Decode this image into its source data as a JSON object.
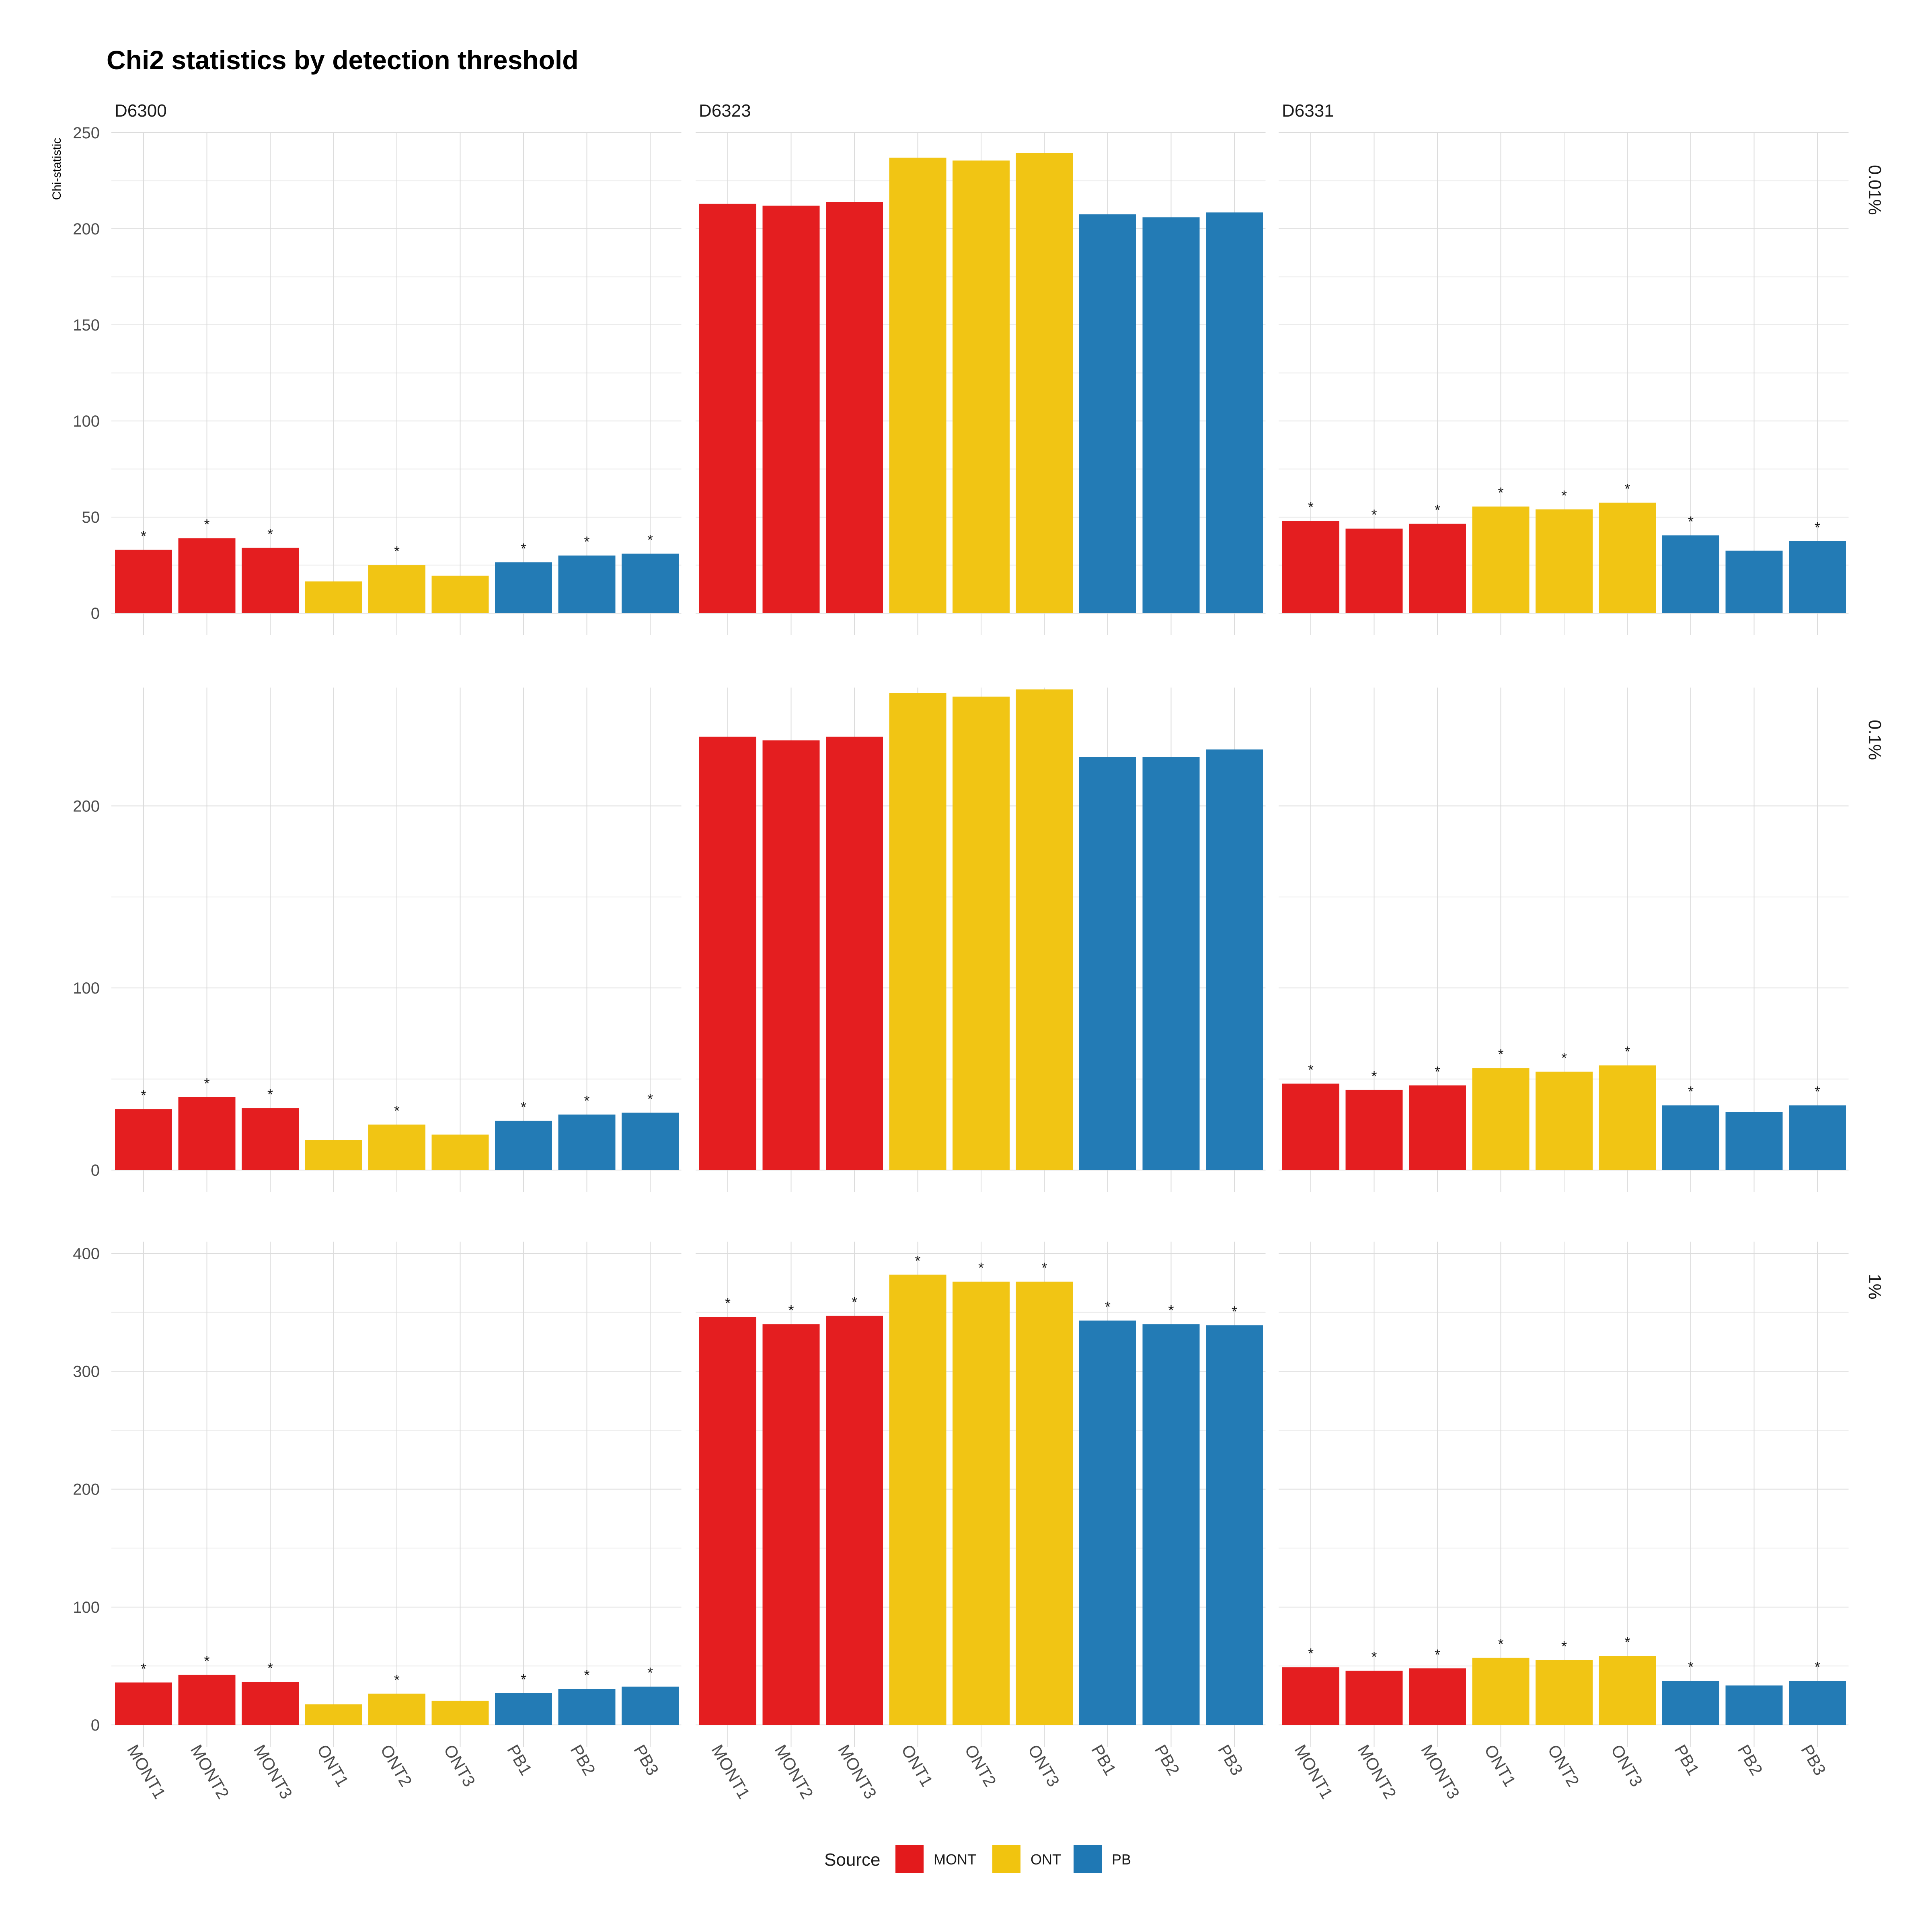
{
  "chart_data": {
    "type": "bar",
    "title": "Chi2 statistics by detection threshold",
    "ylabel": "Chi-statistic",
    "xlabel": "",
    "categories": [
      "MONT1",
      "MONT2",
      "MONT3",
      "ONT1",
      "ONT2",
      "ONT3",
      "PB1",
      "PB2",
      "PB3"
    ],
    "category_source": [
      "MONT",
      "MONT",
      "MONT",
      "ONT",
      "ONT",
      "ONT",
      "PB",
      "PB",
      "PB"
    ],
    "facet_columns": [
      "D6300",
      "D6323",
      "D6331"
    ],
    "facet_rows": [
      "0.01%",
      "0.1%",
      "1%"
    ],
    "legend": {
      "title": "Source",
      "position": "bottom",
      "items": [
        {
          "label": "MONT",
          "color": "#E31A1C"
        },
        {
          "label": "ONT",
          "color": "#F1C40F"
        },
        {
          "label": "PB",
          "color": "#1F78B4"
        }
      ]
    },
    "grid": true,
    "significance_marker": "*",
    "panels": [
      {
        "row": "0.01%",
        "ylim": [
          0,
          250
        ],
        "yticks": [
          0,
          50,
          100,
          150,
          200,
          250
        ],
        "columns": [
          {
            "column": "D6300",
            "values": [
              33,
              39,
              34,
              16.5,
              25,
              19.5,
              26.5,
              30,
              31
            ],
            "significant": [
              true,
              true,
              true,
              false,
              true,
              false,
              true,
              true,
              true
            ]
          },
          {
            "column": "D6323",
            "values": [
              213,
              212,
              214,
              237,
              235.5,
              239.5,
              207.5,
              206,
              208.5
            ],
            "significant": [
              false,
              false,
              false,
              false,
              false,
              false,
              false,
              false,
              false
            ]
          },
          {
            "column": "D6331",
            "values": [
              48,
              44,
              46.5,
              55.5,
              54,
              57.5,
              40.5,
              32.5,
              37.5
            ],
            "significant": [
              true,
              true,
              true,
              true,
              true,
              true,
              true,
              false,
              true
            ]
          }
        ]
      },
      {
        "row": "0.1%",
        "ylim": [
          0,
          265
        ],
        "yticks": [
          0,
          100,
          200
        ],
        "columns": [
          {
            "column": "D6300",
            "values": [
              33.5,
              40,
              34,
              16.5,
              25,
              19.5,
              27,
              30.5,
              31.5
            ],
            "significant": [
              true,
              true,
              true,
              false,
              true,
              false,
              true,
              true,
              true
            ]
          },
          {
            "column": "D6323",
            "values": [
              238,
              236,
              238,
              262,
              260,
              264,
              227,
              227,
              231
            ],
            "significant": [
              false,
              false,
              false,
              false,
              false,
              false,
              false,
              false,
              false
            ]
          },
          {
            "column": "D6331",
            "values": [
              47.5,
              44,
              46.5,
              56,
              54,
              57.5,
              35.5,
              32,
              35.5
            ],
            "significant": [
              true,
              true,
              true,
              true,
              true,
              true,
              true,
              false,
              true
            ]
          }
        ]
      },
      {
        "row": "1%",
        "ylim": [
          0,
          410
        ],
        "yticks": [
          0,
          100,
          200,
          300,
          400
        ],
        "columns": [
          {
            "column": "D6300",
            "values": [
              36,
              42.5,
              36.5,
              17.5,
              26.5,
              20.5,
              27,
              30.5,
              32.5
            ],
            "significant": [
              true,
              true,
              true,
              false,
              true,
              false,
              true,
              true,
              true
            ]
          },
          {
            "column": "D6323",
            "values": [
              346,
              340,
              347,
              382,
              376,
              376,
              343,
              340,
              339
            ],
            "significant": [
              true,
              true,
              true,
              true,
              true,
              true,
              true,
              true,
              true
            ]
          },
          {
            "column": "D6331",
            "values": [
              49,
              46,
              48,
              57,
              55,
              58.5,
              37.5,
              33.5,
              37.5
            ],
            "significant": [
              true,
              true,
              true,
              true,
              true,
              true,
              true,
              false,
              true
            ]
          }
        ]
      }
    ]
  }
}
